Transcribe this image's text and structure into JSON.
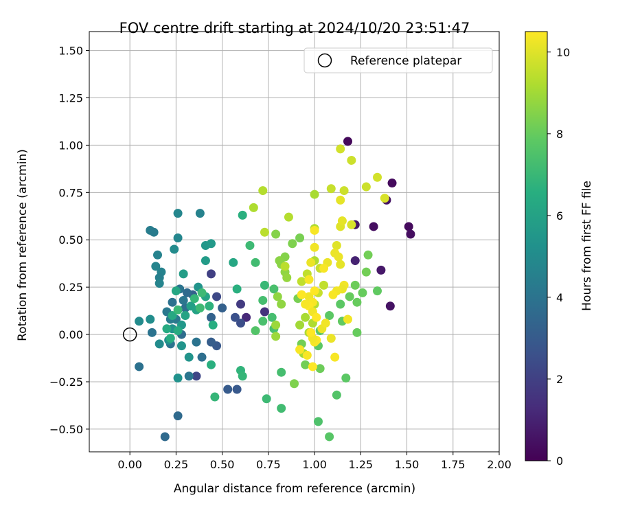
{
  "chart_data": {
    "type": "scatter",
    "title": "FOV centre drift starting at 2024/10/20 23:51:47",
    "xlabel": "Angular distance from reference (arcmin)",
    "ylabel": "Rotation from reference (arcmin)",
    "xlim": [
      -0.22,
      2.0
    ],
    "ylim": [
      -0.62,
      1.6
    ],
    "xticks": [
      "0.00",
      "0.25",
      "0.50",
      "0.75",
      "1.00",
      "1.25",
      "1.50",
      "1.75",
      "2.00"
    ],
    "xtick_values": [
      0,
      0.25,
      0.5,
      0.75,
      1.0,
      1.25,
      1.5,
      1.75,
      2.0
    ],
    "yticks": [
      "−0.50",
      "−0.25",
      "0.00",
      "0.25",
      "0.50",
      "0.75",
      "1.00",
      "1.25",
      "1.50"
    ],
    "ytick_values": [
      -0.5,
      -0.25,
      0,
      0.25,
      0.5,
      0.75,
      1.0,
      1.25,
      1.5
    ],
    "grid": true,
    "legend": {
      "position": "top-right",
      "entries": [
        "Reference platepar"
      ]
    },
    "reference_point": {
      "x": 0.0,
      "y": 0.0,
      "label": "Reference platepar"
    },
    "colorbar": {
      "label": "Hours from first FF file",
      "colormap": "viridis",
      "range": [
        0,
        10.5
      ],
      "ticks": [
        "0",
        "2",
        "4",
        "6",
        "8",
        "10"
      ],
      "tick_values": [
        0,
        2,
        4,
        6,
        8,
        10
      ]
    },
    "points_columns": [
      "x",
      "y",
      "hours"
    ],
    "points": [
      [
        1.18,
        1.02,
        0.2
      ],
      [
        1.42,
        0.8,
        0.3
      ],
      [
        1.51,
        0.57,
        0.3
      ],
      [
        1.52,
        0.53,
        0.4
      ],
      [
        1.39,
        0.71,
        0.5
      ],
      [
        1.32,
        0.57,
        0.4
      ],
      [
        1.22,
        0.58,
        0.6
      ],
      [
        1.36,
        0.34,
        0.7
      ],
      [
        1.41,
        0.15,
        0.5
      ],
      [
        1.22,
        0.39,
        1.0
      ],
      [
        0.73,
        0.12,
        1.5
      ],
      [
        0.63,
        0.09,
        1.2
      ],
      [
        0.6,
        0.16,
        1.8
      ],
      [
        0.44,
        0.32,
        2.0
      ],
      [
        0.47,
        0.2,
        2.3
      ],
      [
        0.36,
        -0.22,
        2.2
      ],
      [
        0.53,
        -0.29,
        3.0
      ],
      [
        0.58,
        -0.29,
        2.9
      ],
      [
        0.47,
        -0.06,
        2.9
      ],
      [
        0.44,
        -0.04,
        3.1
      ],
      [
        0.5,
        0.14,
        3.2
      ],
      [
        0.34,
        0.21,
        3.2
      ],
      [
        0.44,
        0.09,
        3.3
      ],
      [
        0.6,
        0.06,
        2.5
      ],
      [
        0.57,
        0.09,
        2.6
      ],
      [
        0.26,
        -0.43,
        3.6
      ],
      [
        0.19,
        -0.54,
        3.6
      ],
      [
        0.05,
        -0.17,
        3.9
      ],
      [
        0.12,
        0.01,
        4.0
      ],
      [
        0.22,
        -0.05,
        4.0
      ],
      [
        0.39,
        -0.12,
        3.8
      ],
      [
        0.32,
        -0.22,
        4.1
      ],
      [
        0.36,
        -0.04,
        4.0
      ],
      [
        0.28,
        0.0,
        3.7
      ],
      [
        0.3,
        0.14,
        3.8
      ],
      [
        0.31,
        0.22,
        3.6
      ],
      [
        0.23,
        0.17,
        3.9
      ],
      [
        0.25,
        0.08,
        4.2
      ],
      [
        0.22,
        0.08,
        4.3
      ],
      [
        0.2,
        0.12,
        4.2
      ],
      [
        0.27,
        0.24,
        4.0
      ],
      [
        0.29,
        0.18,
        4.1
      ],
      [
        0.11,
        0.55,
        4.4
      ],
      [
        0.13,
        0.54,
        4.3
      ],
      [
        0.15,
        0.42,
        4.6
      ],
      [
        0.17,
        0.33,
        4.6
      ],
      [
        0.16,
        0.3,
        4.5
      ],
      [
        0.14,
        0.36,
        4.7
      ],
      [
        0.16,
        0.27,
        4.7
      ],
      [
        0.26,
        0.64,
        4.8
      ],
      [
        0.38,
        0.64,
        4.6
      ],
      [
        0.26,
        0.51,
        4.8
      ],
      [
        0.24,
        0.45,
        5.0
      ],
      [
        0.05,
        0.07,
        5.0
      ],
      [
        0.11,
        0.08,
        5.1
      ],
      [
        0.16,
        -0.05,
        5.0
      ],
      [
        0.21,
        -0.03,
        5.2
      ],
      [
        0.23,
        0.03,
        5.3
      ],
      [
        0.28,
        -0.06,
        5.4
      ],
      [
        0.32,
        -0.12,
        5.4
      ],
      [
        0.26,
        -0.23,
        5.3
      ],
      [
        0.28,
        0.05,
        5.5
      ],
      [
        0.37,
        0.25,
        5.4
      ],
      [
        0.41,
        0.47,
        5.5
      ],
      [
        0.44,
        0.48,
        5.6
      ],
      [
        0.41,
        0.39,
        5.7
      ],
      [
        0.29,
        0.32,
        5.8
      ],
      [
        0.33,
        0.15,
        5.9
      ],
      [
        0.36,
        0.13,
        6.0
      ],
      [
        0.41,
        0.2,
        6.1
      ],
      [
        0.3,
        0.1,
        6.0
      ],
      [
        0.25,
        0.23,
        6.2
      ],
      [
        0.23,
        0.1,
        6.3
      ],
      [
        0.2,
        0.03,
        6.4
      ],
      [
        0.22,
        -0.02,
        6.5
      ],
      [
        0.26,
        0.02,
        6.4
      ],
      [
        0.45,
        0.05,
        6.5
      ],
      [
        0.56,
        0.38,
        6.2
      ],
      [
        0.61,
        0.63,
        6.6
      ],
      [
        0.58,
        0.24,
        6.6
      ],
      [
        0.6,
        -0.19,
        6.8
      ],
      [
        0.61,
        -0.22,
        6.9
      ],
      [
        0.46,
        -0.33,
        6.9
      ],
      [
        0.44,
        -0.16,
        6.6
      ],
      [
        0.43,
        0.15,
        6.7
      ],
      [
        0.35,
        0.19,
        6.9
      ],
      [
        0.26,
        0.13,
        7.0
      ],
      [
        0.38,
        0.14,
        7.1
      ],
      [
        0.39,
        0.22,
        7.1
      ],
      [
        0.73,
        0.26,
        7.0
      ],
      [
        0.68,
        0.38,
        7.2
      ],
      [
        0.65,
        0.47,
        7.1
      ],
      [
        0.72,
        0.18,
        7.3
      ],
      [
        0.74,
        -0.34,
        7.1
      ],
      [
        0.82,
        -0.39,
        7.2
      ],
      [
        0.82,
        -0.2,
        7.3
      ],
      [
        0.77,
        0.09,
        7.3
      ],
      [
        0.78,
        0.24,
        7.4
      ],
      [
        0.78,
        0.03,
        7.4
      ],
      [
        0.72,
        0.07,
        7.4
      ],
      [
        0.68,
        0.02,
        7.6
      ],
      [
        1.02,
        -0.46,
        7.5
      ],
      [
        1.08,
        -0.54,
        7.7
      ],
      [
        1.17,
        -0.23,
        7.8
      ],
      [
        1.12,
        -0.32,
        7.6
      ],
      [
        1.02,
        -0.06,
        7.8
      ],
      [
        1.03,
        0.02,
        7.8
      ],
      [
        1.08,
        0.1,
        7.8
      ],
      [
        1.15,
        0.07,
        7.9
      ],
      [
        1.14,
        0.16,
        7.8
      ],
      [
        1.19,
        0.2,
        8.0
      ],
      [
        1.23,
        0.17,
        8.0
      ],
      [
        1.22,
        0.26,
        8.1
      ],
      [
        1.26,
        0.22,
        8.0
      ],
      [
        1.28,
        0.33,
        8.2
      ],
      [
        1.29,
        0.42,
        8.2
      ],
      [
        1.34,
        0.23,
        7.9
      ],
      [
        1.23,
        0.01,
        8.0
      ],
      [
        1.03,
        -0.18,
        8.1
      ],
      [
        0.95,
        -0.16,
        8.2
      ],
      [
        0.93,
        -0.05,
        8.2
      ],
      [
        0.89,
        -0.26,
        8.4
      ],
      [
        0.91,
        0.19,
        8.3
      ],
      [
        0.88,
        0.48,
        8.4
      ],
      [
        0.92,
        0.51,
        8.3
      ],
      [
        0.84,
        0.41,
        8.5
      ],
      [
        0.79,
        0.53,
        8.5
      ],
      [
        0.81,
        0.39,
        8.6
      ],
      [
        0.82,
        0.37,
        8.6
      ],
      [
        0.84,
        0.33,
        8.7
      ],
      [
        0.85,
        0.3,
        8.8
      ],
      [
        0.8,
        0.2,
        8.7
      ],
      [
        0.82,
        0.16,
        8.7
      ],
      [
        0.79,
        0.05,
        8.9
      ],
      [
        0.79,
        -0.01,
        8.9
      ],
      [
        0.92,
        0.05,
        9.0
      ],
      [
        0.95,
        0.09,
        9.1
      ],
      [
        0.94,
        -0.1,
        9.0
      ],
      [
        0.97,
        0.01,
        9.2
      ],
      [
        0.99,
        0.06,
        9.2
      ],
      [
        1.0,
        0.16,
        9.3
      ],
      [
        1.0,
        0.39,
        9.2
      ],
      [
        1.0,
        0.56,
        9.2
      ],
      [
        1.0,
        0.74,
        9.1
      ],
      [
        0.72,
        0.76,
        9.3
      ],
      [
        0.67,
        0.67,
        9.2
      ],
      [
        0.86,
        0.62,
        9.3
      ],
      [
        0.73,
        0.54,
        9.4
      ],
      [
        0.84,
        0.36,
        9.4
      ],
      [
        0.93,
        0.28,
        9.5
      ],
      [
        0.96,
        0.32,
        9.5
      ],
      [
        1.02,
        0.22,
        9.6
      ],
      [
        1.03,
        0.35,
        9.6
      ],
      [
        1.05,
        0.26,
        9.5
      ],
      [
        1.09,
        0.77,
        9.6
      ],
      [
        1.16,
        0.76,
        9.7
      ],
      [
        1.2,
        0.92,
        9.7
      ],
      [
        1.14,
        0.98,
        9.8
      ],
      [
        1.28,
        0.78,
        9.7
      ],
      [
        1.34,
        0.83,
        9.8
      ],
      [
        1.38,
        0.72,
        9.9
      ],
      [
        1.2,
        0.58,
        9.9
      ],
      [
        1.14,
        0.57,
        10.0
      ],
      [
        1.15,
        0.6,
        10.1
      ],
      [
        1.14,
        0.71,
        10.1
      ],
      [
        1.12,
        0.47,
        10.0
      ],
      [
        1.11,
        0.43,
        10.2
      ],
      [
        1.13,
        0.41,
        10.2
      ],
      [
        1.14,
        0.37,
        10.1
      ],
      [
        1.16,
        0.26,
        10.3
      ],
      [
        1.15,
        0.24,
        10.2
      ],
      [
        1.12,
        0.23,
        10.3
      ],
      [
        1.1,
        0.21,
        10.4
      ],
      [
        1.07,
        0.38,
        10.2
      ],
      [
        1.05,
        0.35,
        10.4
      ],
      [
        1.0,
        0.46,
        10.3
      ],
      [
        1.0,
        0.55,
        10.4
      ],
      [
        0.98,
        0.38,
        10.2
      ],
      [
        0.97,
        0.29,
        10.4
      ],
      [
        0.97,
        0.2,
        10.3
      ],
      [
        0.99,
        0.17,
        10.4
      ],
      [
        1.0,
        0.23,
        10.5
      ],
      [
        0.97,
        0.15,
        10.5
      ],
      [
        0.93,
        0.21,
        10.4
      ],
      [
        0.93,
        0.21,
        10.5
      ],
      [
        0.95,
        0.16,
        10.4
      ],
      [
        0.99,
        0.12,
        10.3
      ],
      [
        1.01,
        0.09,
        10.5
      ],
      [
        1.01,
        -0.03,
        10.5
      ],
      [
        1.0,
        -0.04,
        10.4
      ],
      [
        0.99,
        -0.02,
        10.3
      ],
      [
        0.98,
        0.01,
        10.5
      ],
      [
        0.96,
        -0.11,
        10.4
      ],
      [
        0.99,
        -0.17,
        10.5
      ],
      [
        0.92,
        -0.08,
        10.4
      ],
      [
        1.04,
        0.03,
        10.2
      ],
      [
        1.06,
        0.06,
        10.3
      ],
      [
        1.09,
        -0.02,
        10.2
      ],
      [
        1.11,
        -0.12,
        10.4
      ],
      [
        1.18,
        0.08,
        10.3
      ]
    ]
  }
}
